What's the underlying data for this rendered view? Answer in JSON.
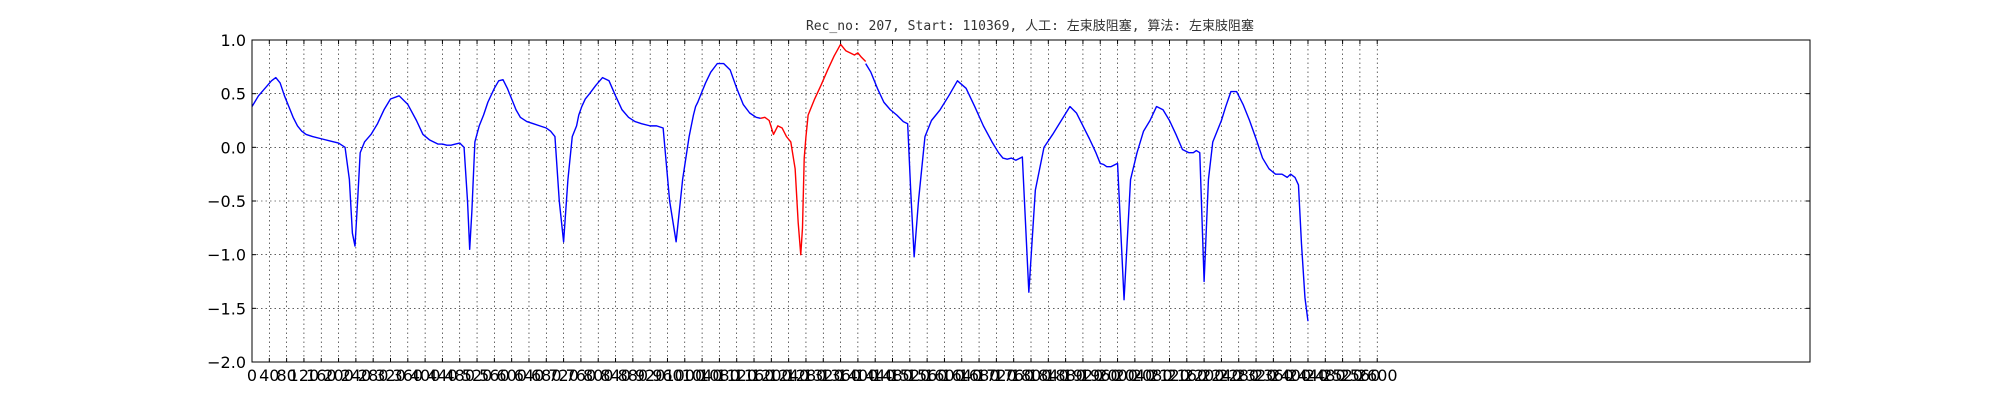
{
  "chart_data": {
    "type": "line",
    "title": "Rec_no: 207, Start: 110369, 人工: 左束肢阻塞, 算法: 左束肢阻塞",
    "xlabel": "",
    "ylabel": "",
    "xlim": [
      0,
      3600
    ],
    "ylim": [
      -2.0,
      1.0
    ],
    "grid": true,
    "yticks": [
      "1.0",
      "0.5",
      "0.0",
      "−0.5",
      "−1.0",
      "−1.5",
      "−2.0"
    ],
    "yticks_values": [
      1.0,
      0.5,
      0.0,
      -0.5,
      -1.0,
      -1.5,
      -2.0
    ],
    "xticks_values": [
      0,
      40,
      80,
      120,
      160,
      200,
      240,
      280,
      320,
      360,
      400,
      440,
      480,
      520,
      560,
      600,
      640,
      680,
      720,
      760,
      800,
      840,
      880,
      920,
      960,
      1000,
      1040,
      1080,
      1120,
      1160,
      1200,
      1240,
      1280,
      1320,
      1360,
      1400,
      1440,
      1480,
      1520,
      1560,
      1600,
      1640,
      1680,
      1720,
      1760,
      1800,
      1840,
      1880,
      1920,
      1960,
      2000,
      2040,
      2080,
      2120,
      2160,
      2200,
      2240,
      2280,
      2320,
      2360,
      2400,
      2440,
      2480,
      2520,
      2560,
      2600
    ],
    "xticks_labels": [
      "0",
      "40",
      "80",
      "120",
      "160",
      "200",
      "240",
      "280",
      "320",
      "360",
      "400",
      "440",
      "480",
      "520",
      "560",
      "600",
      "640",
      "680",
      "720",
      "760",
      "800",
      "840",
      "880",
      "920",
      "960",
      "1000",
      "1040",
      "1080",
      "1120",
      "1160",
      "1200",
      "1240",
      "1280",
      "1320",
      "1360",
      "1400",
      "1440",
      "1480",
      "1520",
      "1560",
      "1600",
      "1640",
      "1680",
      "1720",
      "1760",
      "1800",
      "1840",
      "1880",
      "1920",
      "1960",
      "2000",
      "2040",
      "2080",
      "2120",
      "2160",
      "2200",
      "2240",
      "2280",
      "2320",
      "2360",
      "2400",
      "2440",
      "2480",
      "2520",
      "2560",
      "2600"
    ],
    "x_max_data": 2640,
    "series": [
      {
        "color": "#0000ff",
        "x": [
          0,
          15,
          30,
          45,
          55,
          65,
          75,
          85,
          95,
          105,
          115,
          125,
          140,
          160,
          180,
          200,
          215,
          225,
          232,
          238,
          244,
          250,
          260,
          275,
          290,
          305,
          320,
          340,
          360,
          380,
          395,
          410,
          420,
          430,
          440,
          450,
          460,
          470,
          480,
          490,
          498,
          503,
          508,
          515,
          525,
          535,
          545,
          560,
          570,
          580,
          590,
          600,
          610,
          620,
          635,
          650,
          665,
          680,
          690,
          700,
          710,
          720,
          730,
          740,
          750,
          755,
          762,
          770,
          780,
          795,
          810,
          825,
          840,
          855,
          870,
          885,
          900,
          920,
          935,
          950,
          965,
          980,
          995,
          1010,
          1020,
          1025,
          1030,
          1038,
          1048,
          1060,
          1075,
          1090,
          1105,
          1120,
          1135,
          1150,
          1165,
          1175
        ],
        "y": [
          0.38,
          0.48,
          0.55,
          0.62,
          0.65,
          0.6,
          0.48,
          0.38,
          0.28,
          0.2,
          0.15,
          0.12,
          0.1,
          0.08,
          0.06,
          0.04,
          0.0,
          -0.3,
          -0.8,
          -0.92,
          -0.5,
          -0.05,
          0.05,
          0.12,
          0.22,
          0.35,
          0.45,
          0.48,
          0.4,
          0.25,
          0.12,
          0.07,
          0.05,
          0.03,
          0.03,
          0.02,
          0.02,
          0.03,
          0.04,
          0.0,
          -0.5,
          -0.95,
          -0.6,
          0.05,
          0.2,
          0.3,
          0.42,
          0.55,
          0.62,
          0.63,
          0.55,
          0.45,
          0.35,
          0.28,
          0.24,
          0.22,
          0.2,
          0.18,
          0.15,
          0.1,
          -0.5,
          -0.88,
          -0.3,
          0.1,
          0.2,
          0.3,
          0.38,
          0.45,
          0.5,
          0.58,
          0.65,
          0.62,
          0.48,
          0.35,
          0.28,
          0.24,
          0.22,
          0.2,
          0.2,
          0.18,
          -0.5,
          -0.88,
          -0.3,
          0.1,
          0.3,
          0.38,
          0.42,
          0.5,
          0.6,
          0.7,
          0.78,
          0.78,
          0.72,
          0.55,
          0.4,
          0.32,
          0.28,
          0.27
        ]
      },
      {
        "color": "#ff0000",
        "x": [
          1175,
          1185,
          1195,
          1205,
          1215,
          1225,
          1235,
          1245,
          1255,
          1262,
          1268,
          1272,
          1276,
          1280,
          1285,
          1290,
          1300,
          1315,
          1330,
          1345,
          1360,
          1372,
          1382,
          1392,
          1400,
          1408,
          1418
        ],
        "y": [
          0.27,
          0.28,
          0.25,
          0.12,
          0.2,
          0.18,
          0.1,
          0.05,
          -0.2,
          -0.7,
          -1.0,
          -0.75,
          -0.1,
          0.1,
          0.3,
          0.35,
          0.45,
          0.58,
          0.72,
          0.85,
          0.96,
          0.9,
          0.88,
          0.86,
          0.88,
          0.84,
          0.8
        ]
      },
      {
        "color": "#0000ff",
        "x": [
          1418,
          1430,
          1445,
          1460,
          1475,
          1490,
          1505,
          1515,
          1522,
          1530,
          1540,
          1555,
          1570,
          1590,
          1610,
          1630,
          1650,
          1670,
          1690,
          1710,
          1725,
          1735,
          1745,
          1755,
          1765,
          1780,
          1795,
          1810,
          1830,
          1850,
          1870,
          1890,
          1905,
          1920,
          1935,
          1950,
          1960,
          1968,
          1975,
          1985,
          2000,
          2015,
          2030,
          2045,
          2060,
          2075,
          2090,
          2105,
          2120,
          2135,
          2150,
          2165,
          2175,
          2182,
          2190,
          2200,
          2210,
          2220,
          2230,
          2240,
          2250,
          2262,
          2275,
          2290,
          2305,
          2320,
          2335,
          2350,
          2365,
          2380,
          2392,
          2400,
          2410,
          2418,
          2425,
          2433,
          2440
        ],
        "y": [
          0.78,
          0.7,
          0.55,
          0.42,
          0.35,
          0.3,
          0.24,
          0.22,
          -0.4,
          -1.02,
          -0.5,
          0.1,
          0.25,
          0.35,
          0.48,
          0.62,
          0.55,
          0.38,
          0.2,
          0.05,
          -0.05,
          -0.1,
          -0.11,
          -0.1,
          -0.12,
          -0.09,
          -1.35,
          -0.4,
          0.0,
          0.12,
          0.25,
          0.38,
          0.32,
          0.2,
          0.08,
          -0.05,
          -0.15,
          -0.16,
          -0.18,
          -0.18,
          -0.15,
          -1.42,
          -0.3,
          -0.05,
          0.15,
          0.25,
          0.38,
          0.35,
          0.25,
          0.12,
          -0.02,
          -0.05,
          -0.05,
          -0.03,
          -0.05,
          -1.25,
          -0.3,
          0.05,
          0.15,
          0.25,
          0.38,
          0.52,
          0.52,
          0.4,
          0.25,
          0.08,
          -0.1,
          -0.2,
          -0.25,
          -0.25,
          -0.28,
          -0.25,
          -0.28,
          -0.35,
          -0.9,
          -1.4,
          -1.62
        ]
      }
    ]
  }
}
